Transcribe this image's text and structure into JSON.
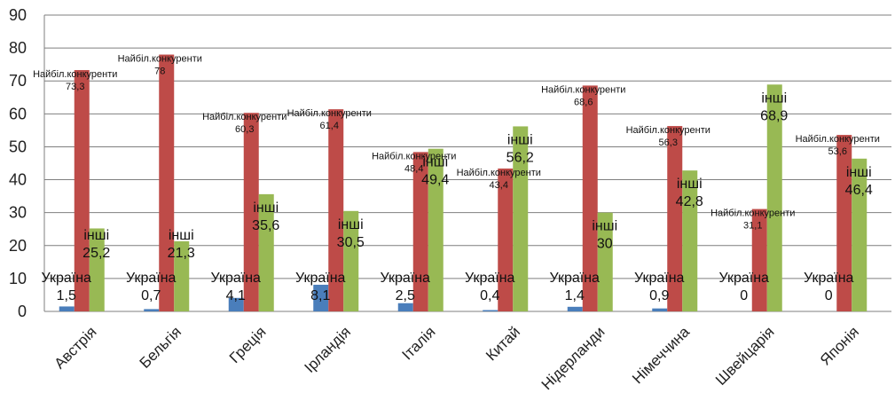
{
  "chart_data": {
    "type": "bar",
    "categories": [
      "Австрія",
      "Бельгія",
      "Греція",
      "Ірландія",
      "Італія",
      "Китай",
      "Нідерланди",
      "Німеччина",
      "Швейцарія",
      "Японія"
    ],
    "series": [
      {
        "name": "Україна",
        "color": "#4a7ebb",
        "values": [
          1.5,
          0.7,
          4.1,
          8.1,
          2.5,
          0.4,
          1.4,
          0.9,
          0,
          0
        ],
        "value_labels": [
          "1,5",
          "0,7",
          "4,1",
          "8,1",
          "2,5",
          "0,4",
          "1,4",
          "0,9",
          "0",
          "0"
        ]
      },
      {
        "name": "Найбіл.конкуренти",
        "color": "#be4b48",
        "values": [
          73.3,
          78,
          60.3,
          61.4,
          48.4,
          43.4,
          68.6,
          56.3,
          31.1,
          53.6
        ],
        "value_labels": [
          "73,3",
          "78",
          "60,3",
          "61,4",
          "48,4",
          "43,4",
          "68,6",
          "56,3",
          "31,1",
          "53,6"
        ]
      },
      {
        "name": "інші",
        "color": "#98b954",
        "values": [
          25.2,
          21.3,
          35.6,
          30.5,
          49.4,
          56.2,
          30,
          42.8,
          68.9,
          46.4
        ],
        "value_labels": [
          "25,2",
          "21,3",
          "35,6",
          "30,5",
          "49,4",
          "56,2",
          "30",
          "42,8",
          "68,9",
          "46,4"
        ]
      }
    ],
    "ylim": [
      0,
      90
    ],
    "yticks": [
      "0",
      "10",
      "20",
      "30",
      "40",
      "50",
      "60",
      "70",
      "80",
      "90"
    ],
    "grid": true,
    "legend": "none"
  }
}
